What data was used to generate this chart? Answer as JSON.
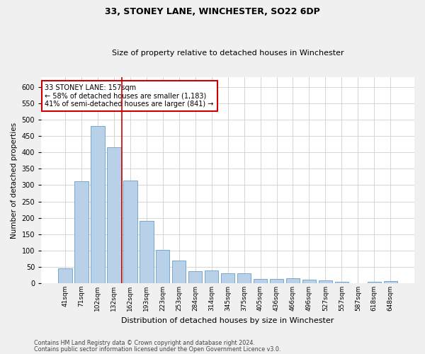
{
  "title": "33, STONEY LANE, WINCHESTER, SO22 6DP",
  "subtitle": "Size of property relative to detached houses in Winchester",
  "xlabel": "Distribution of detached houses by size in Winchester",
  "ylabel": "Number of detached properties",
  "categories": [
    "41sqm",
    "71sqm",
    "102sqm",
    "132sqm",
    "162sqm",
    "193sqm",
    "223sqm",
    "253sqm",
    "284sqm",
    "314sqm",
    "345sqm",
    "375sqm",
    "405sqm",
    "436sqm",
    "466sqm",
    "496sqm",
    "527sqm",
    "557sqm",
    "587sqm",
    "618sqm",
    "648sqm"
  ],
  "values": [
    46,
    311,
    480,
    415,
    313,
    190,
    102,
    70,
    37,
    38,
    31,
    30,
    14,
    13,
    15,
    11,
    9,
    5,
    0,
    5,
    6
  ],
  "bar_color": "#b8d0e8",
  "bar_edge_color": "#6a9fc8",
  "reference_line_index": 3.5,
  "reference_line_color": "#cc0000",
  "annotation_text": "33 STONEY LANE: 157sqm\n← 58% of detached houses are smaller (1,183)\n41% of semi-detached houses are larger (841) →",
  "annotation_box_color": "#ffffff",
  "annotation_box_edge": "#cc0000",
  "ylim": [
    0,
    630
  ],
  "yticks": [
    0,
    50,
    100,
    150,
    200,
    250,
    300,
    350,
    400,
    450,
    500,
    550,
    600
  ],
  "footer1": "Contains HM Land Registry data © Crown copyright and database right 2024.",
  "footer2": "Contains public sector information licensed under the Open Government Licence v3.0.",
  "bg_color": "#f0f0f0",
  "plot_bg_color": "#ffffff",
  "grid_color": "#d0d0d0",
  "title_fontsize": 9,
  "subtitle_fontsize": 8,
  "ylabel_fontsize": 7.5,
  "xlabel_fontsize": 8,
  "ytick_fontsize": 7,
  "xtick_fontsize": 6.5,
  "footer_fontsize": 5.8,
  "annot_fontsize": 7
}
